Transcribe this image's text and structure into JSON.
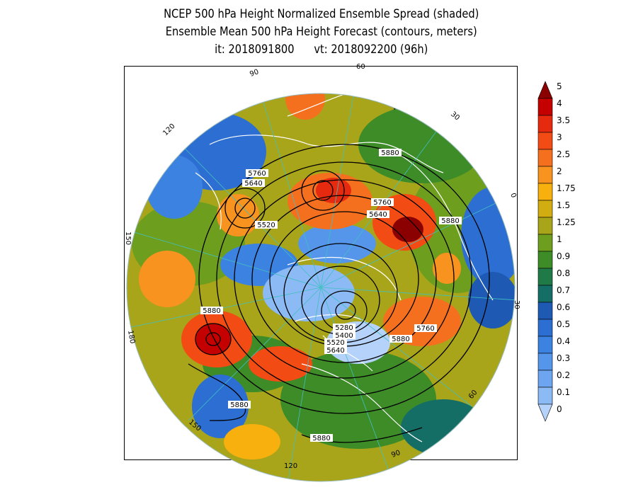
{
  "title": {
    "line1": "NCEP 500 hPa Height Normalized Ensemble Spread (shaded)",
    "line2": "Ensemble Mean 500 hPa Height Forecast (contours, meters)",
    "line3": "it: 2018091800      vt: 2018092200 (96h)"
  },
  "colorbar": {
    "bins": [
      {
        "label": "5",
        "color": "#8b0000"
      },
      {
        "label": "4",
        "color": "#c40000"
      },
      {
        "label": "3.5",
        "color": "#e62a0f"
      },
      {
        "label": "3",
        "color": "#f24c14"
      },
      {
        "label": "2.5",
        "color": "#f5701e"
      },
      {
        "label": "2",
        "color": "#f7931e"
      },
      {
        "label": "1.75",
        "color": "#f7b00e"
      },
      {
        "label": "1.5",
        "color": "#d2ad12"
      },
      {
        "label": "1.25",
        "color": "#a9a51a"
      },
      {
        "label": "1",
        "color": "#6e9e1e"
      },
      {
        "label": "0.9",
        "color": "#3d8c28"
      },
      {
        "label": "0.8",
        "color": "#1f7a48"
      },
      {
        "label": "0.7",
        "color": "#146e66"
      },
      {
        "label": "0.6",
        "color": "#1e5ab4"
      },
      {
        "label": "0.5",
        "color": "#2d6ed2"
      },
      {
        "label": "0.4",
        "color": "#3c82e1"
      },
      {
        "label": "0.3",
        "color": "#5596eb"
      },
      {
        "label": "0.2",
        "color": "#6ea5f0"
      },
      {
        "label": "0.1",
        "color": "#8cbaf5"
      },
      {
        "label": "0",
        "color": "#b4d2fa"
      }
    ]
  },
  "longitude_labels": [
    "60",
    "30",
    "0",
    "30",
    "60",
    "90",
    "120",
    "150",
    "180",
    "150",
    "120",
    "90"
  ],
  "contour_labels": [
    "5880",
    "5760",
    "5640",
    "5520",
    "5760",
    "5640",
    "5880",
    "5880",
    "5280",
    "5400",
    "5520",
    "5640",
    "5880",
    "5760",
    "5880",
    "5880"
  ],
  "contours_meters": [
    5280,
    5400,
    5520,
    5640,
    5760,
    5880
  ]
}
